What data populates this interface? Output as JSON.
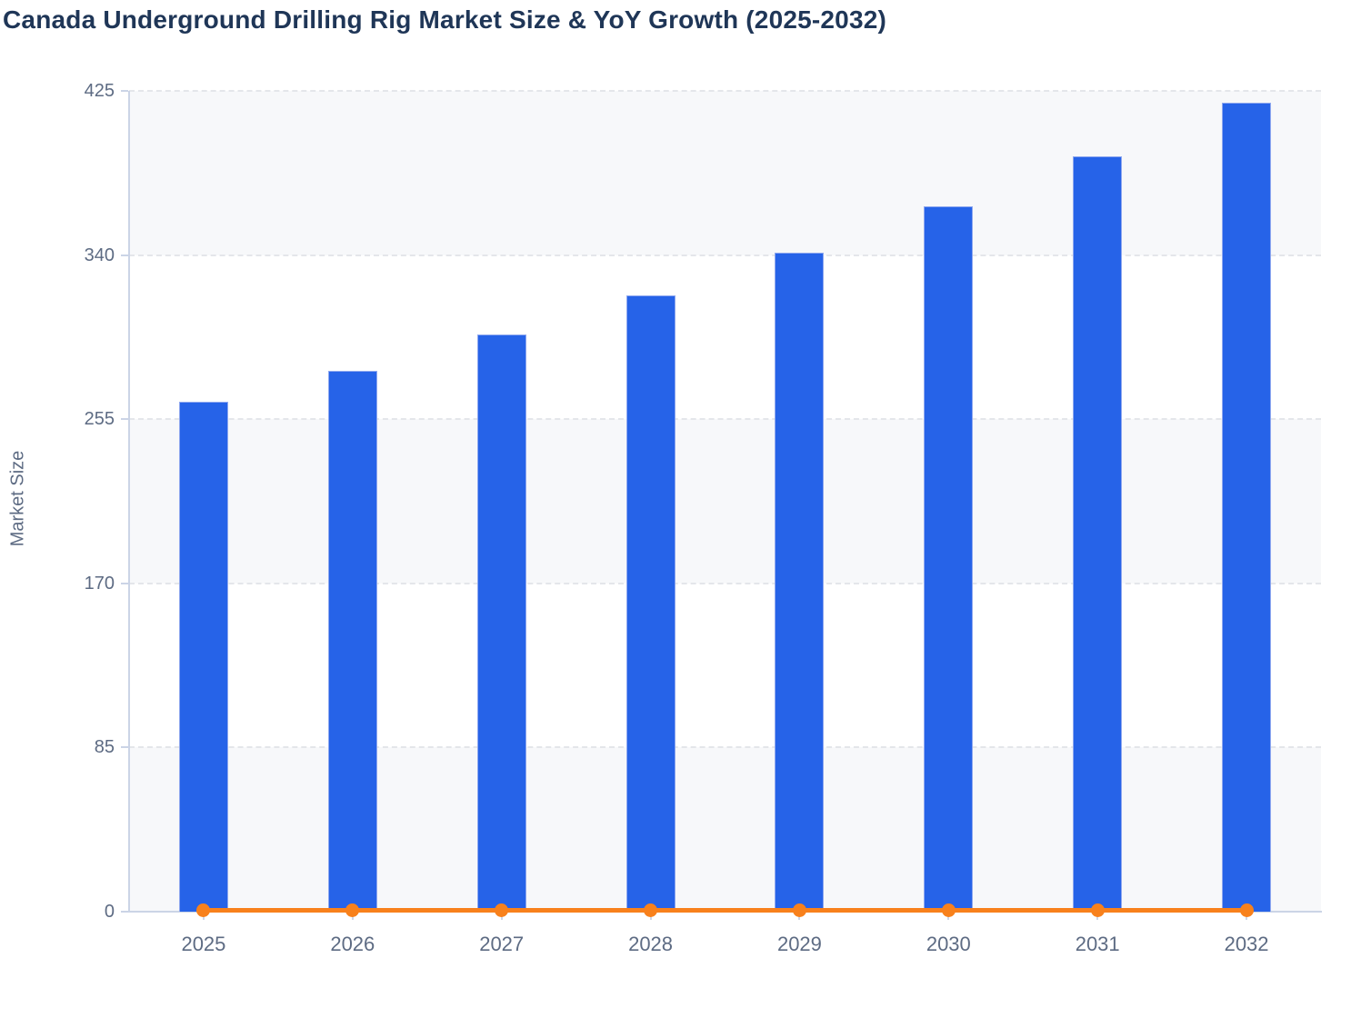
{
  "page": {
    "background": "#ffffff"
  },
  "chart": {
    "title": "Canada Underground Drilling Rig Market Size & YoY Growth (2025-2032)",
    "y_axis_title": "Market Size"
  },
  "chart_data": {
    "type": "bar",
    "subtype": "bar-line-combo",
    "title": "Canada Underground Drilling Rig Market Size & YoY Growth (2025-2032)",
    "xlabel": "",
    "ylabel": "Market Size",
    "categories": [
      "2025",
      "2026",
      "2027",
      "2028",
      "2029",
      "2030",
      "2031",
      "2032"
    ],
    "series": [
      {
        "name": "Market Size",
        "type": "bar",
        "color": "#2663E8",
        "values": [
          264,
          280,
          299,
          319,
          341,
          365,
          391,
          419
        ]
      },
      {
        "name": "YoY Growth",
        "type": "line",
        "color": "#F8811C",
        "values": [
          0,
          0,
          0,
          0,
          0,
          0,
          0,
          0
        ]
      }
    ],
    "y_ticks": [
      0,
      85,
      170,
      255,
      340,
      425
    ],
    "ylim": [
      0,
      425
    ],
    "legend_position": "none",
    "grid": {
      "horizontal_gridlines": "dashed",
      "alternating_bands": true,
      "band_color": "#f7f8fa"
    }
  },
  "colors": {
    "title_text": "#1f3657",
    "tick_text": "#5d6b83",
    "axis_line": "#cbd4e6",
    "gridline": "#e4e6ea",
    "band_fill": "#f7f8fa",
    "bar_fill": "#2663E8",
    "bar_border": "#8fa8ef",
    "line_orange": "#F8811C"
  }
}
